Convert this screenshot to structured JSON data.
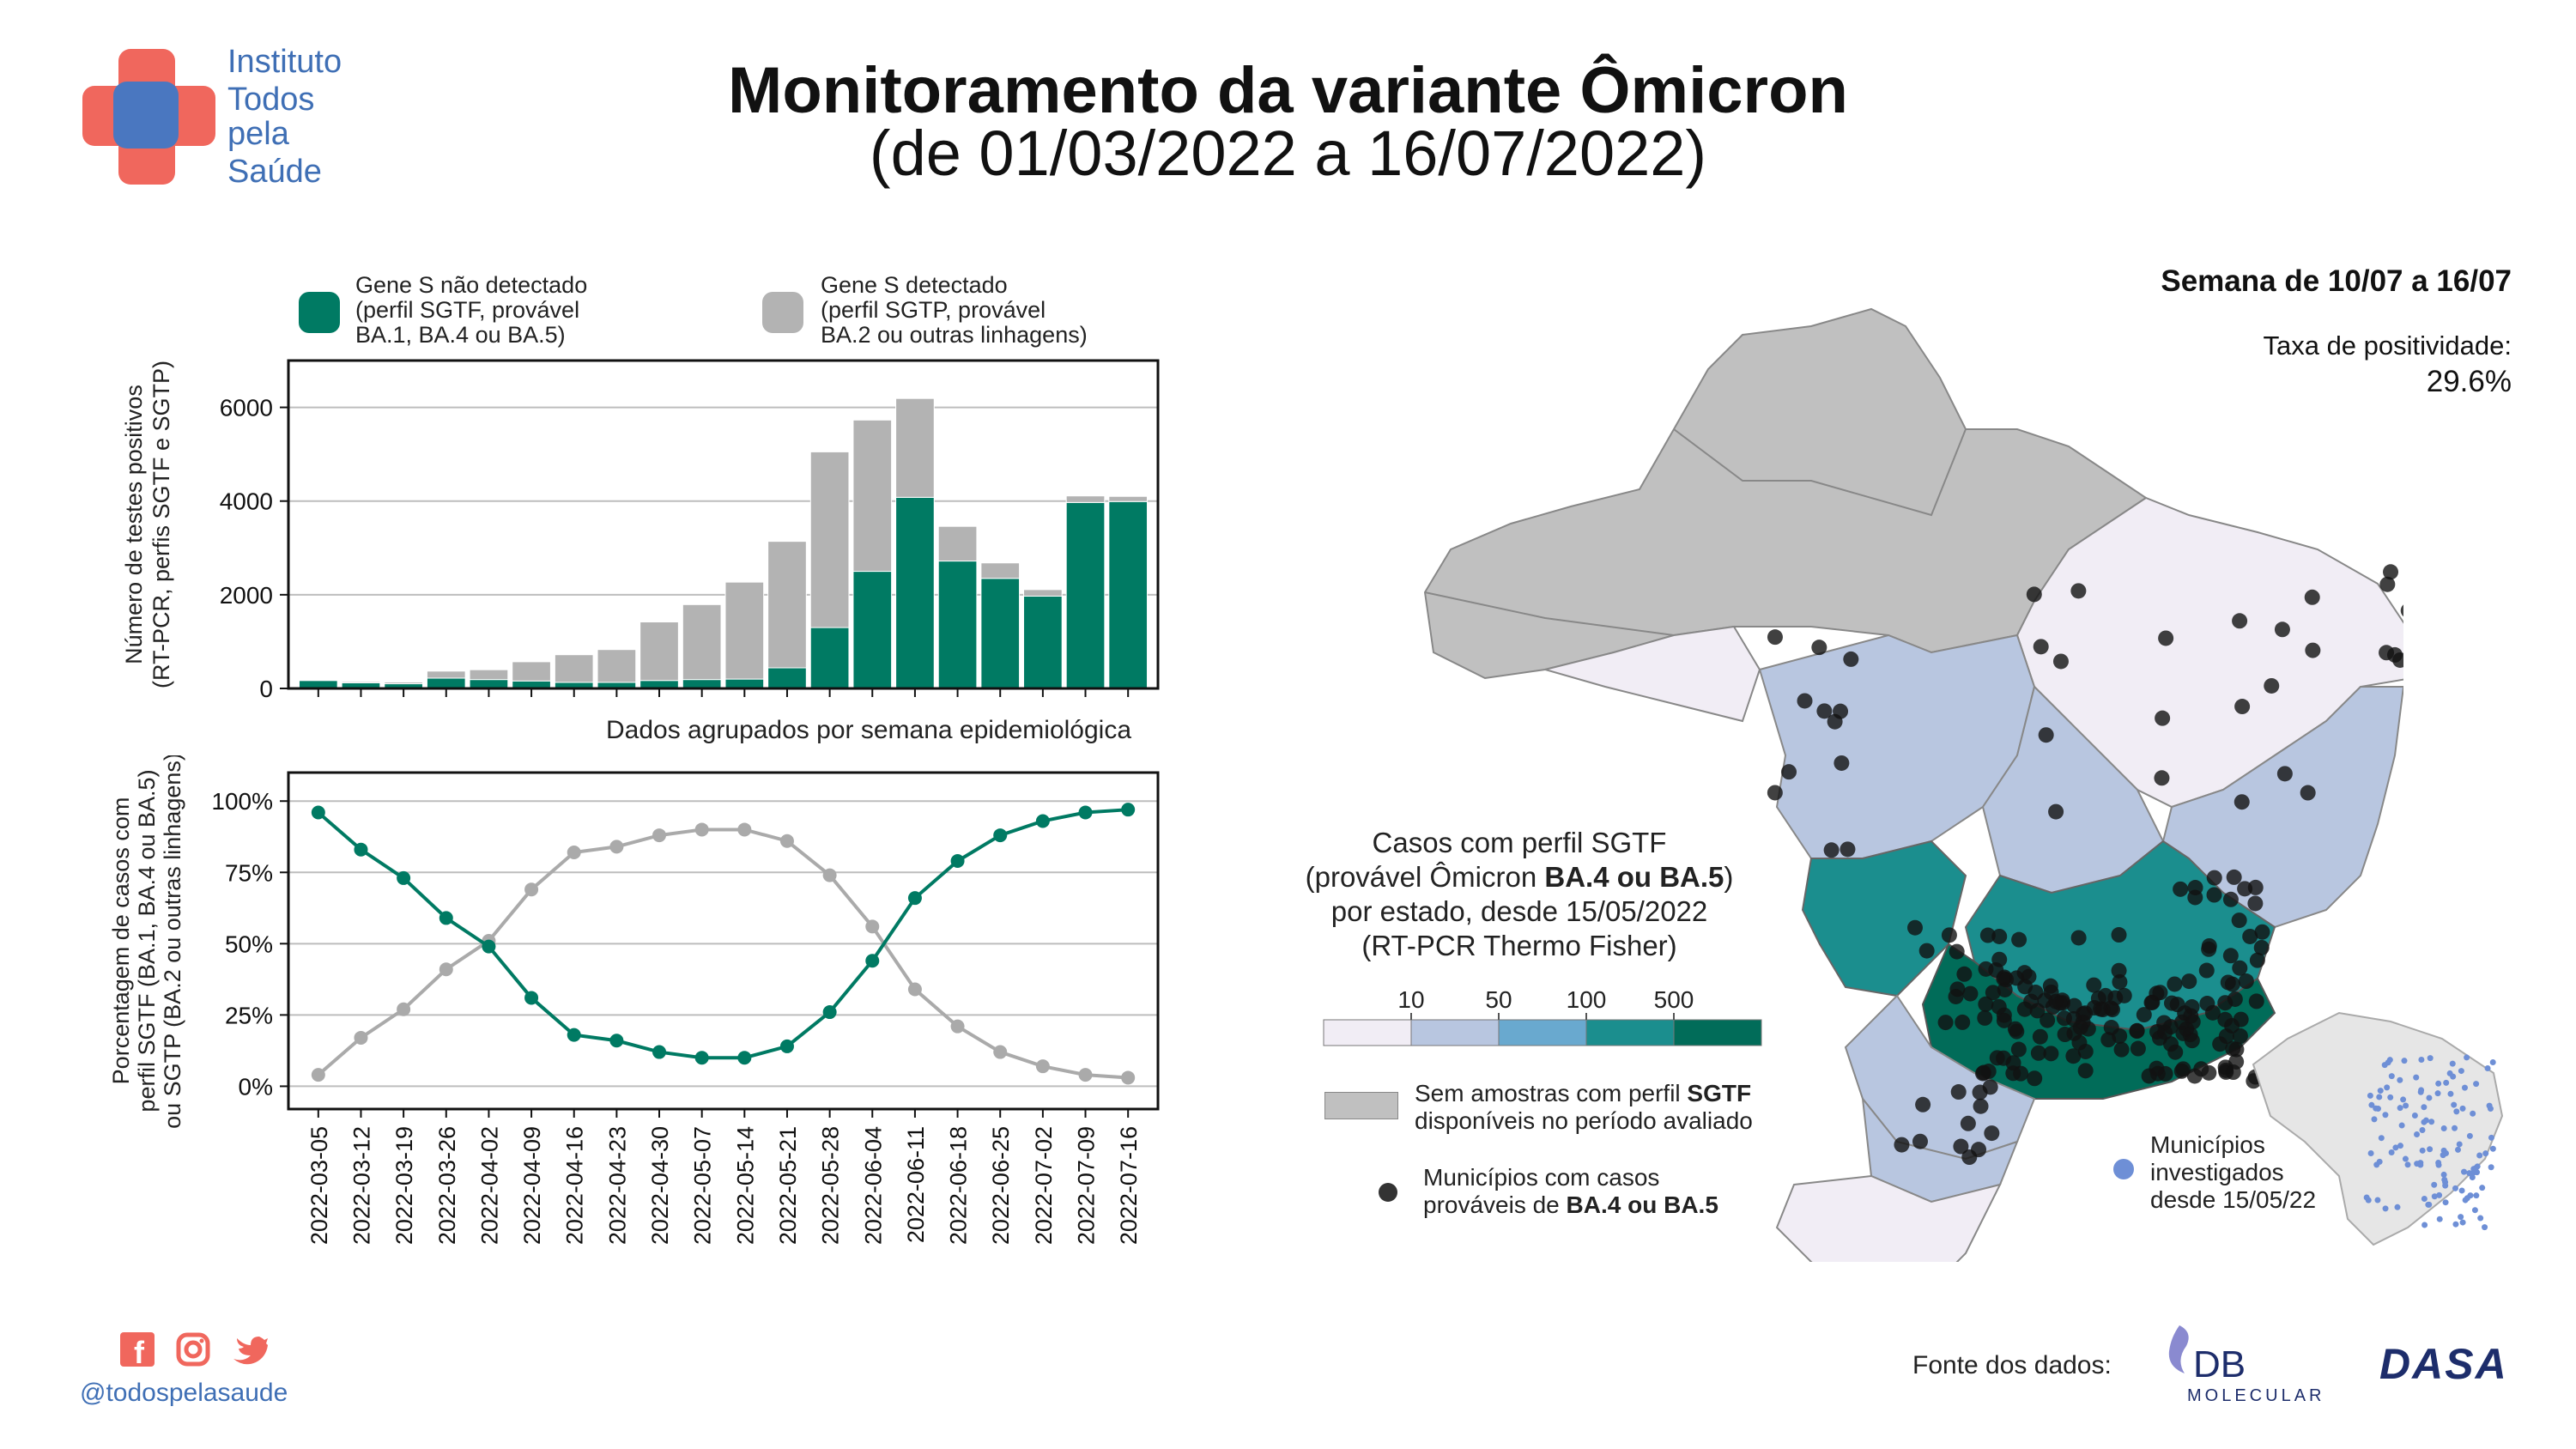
{
  "header": {
    "title": "Monitoramento da variante Ômicron",
    "subtitle": "(de 01/03/2022 a 16/07/2022)"
  },
  "logo": {
    "lines": [
      "Instituto",
      "Todos",
      "pela",
      "Saúde"
    ],
    "colors": {
      "red": "#f0675d",
      "blue": "#4a77c0"
    }
  },
  "legend_top": {
    "sgtf": {
      "lines": [
        "Gene S não detectado",
        "(perfil SGTF, provável",
        "BA.1, BA.4 ou BA.5)"
      ],
      "color": "#007a63"
    },
    "sgtp": {
      "lines": [
        "Gene S detectado",
        "(perfil SGTP, provável",
        "BA.2 ou outras linhagens)"
      ],
      "color": "#b3b3b3"
    }
  },
  "chart_data": [
    {
      "type": "bar",
      "stacked": true,
      "ylabel": [
        "Número de testes positivos",
        "(RT-PCR, perfis SGTF e SGTP)"
      ],
      "xlabel": "Dados agrupados por semana epidemiológica",
      "ylim": [
        0,
        7000
      ],
      "yticks": [
        0,
        2000,
        4000,
        6000
      ],
      "ytick_labels": [
        "0",
        "2000",
        "4000",
        "6000"
      ],
      "grid": true,
      "categories": [
        "2022-03-05",
        "2022-03-12",
        "2022-03-19",
        "2022-03-26",
        "2022-04-02",
        "2022-04-09",
        "2022-04-16",
        "2022-04-23",
        "2022-04-30",
        "2022-05-07",
        "2022-05-14",
        "2022-05-21",
        "2022-05-28",
        "2022-06-04",
        "2022-06-11",
        "2022-06-18",
        "2022-06-25",
        "2022-07-02",
        "2022-07-09",
        "2022-07-16"
      ],
      "series": [
        {
          "name": "Gene S não detectado",
          "color": "#007a63",
          "values": [
            170,
            120,
            100,
            220,
            190,
            160,
            130,
            130,
            170,
            190,
            200,
            440,
            1300,
            2500,
            4080,
            2720,
            2350,
            1970,
            3970,
            3990
          ]
        },
        {
          "name": "Gene S detectado",
          "color": "#b3b3b3",
          "values": [
            10,
            25,
            35,
            150,
            210,
            410,
            590,
            700,
            1250,
            1600,
            2070,
            2700,
            3750,
            3230,
            2110,
            740,
            330,
            140,
            140,
            110
          ]
        }
      ]
    },
    {
      "type": "line",
      "ylabel": [
        "Porcentagem de casos com",
        "perfil SGTF (BA.1, BA.4 ou BA.5)",
        "ou SGTP (BA.2 ou outras linhagens)"
      ],
      "ylim": [
        -0.08,
        1.1
      ],
      "yticks": [
        0,
        0.25,
        0.5,
        0.75,
        1.0
      ],
      "ytick_labels": [
        "0%",
        "25%",
        "50%",
        "75%",
        "100%"
      ],
      "grid": true,
      "categories": [
        "2022-03-05",
        "2022-03-12",
        "2022-03-19",
        "2022-03-26",
        "2022-04-02",
        "2022-04-09",
        "2022-04-16",
        "2022-04-23",
        "2022-04-30",
        "2022-05-07",
        "2022-05-14",
        "2022-05-21",
        "2022-05-28",
        "2022-06-04",
        "2022-06-11",
        "2022-06-18",
        "2022-06-25",
        "2022-07-02",
        "2022-07-09",
        "2022-07-16"
      ],
      "series": [
        {
          "name": "Gene S não detectado",
          "color": "#007a63",
          "values": [
            0.96,
            0.83,
            0.73,
            0.59,
            0.49,
            0.31,
            0.18,
            0.16,
            0.12,
            0.1,
            0.1,
            0.14,
            0.26,
            0.44,
            0.66,
            0.79,
            0.88,
            0.93,
            0.96,
            0.97
          ]
        },
        {
          "name": "Gene S detectado",
          "color": "#aaaaaa",
          "values": [
            0.04,
            0.17,
            0.27,
            0.41,
            0.51,
            0.69,
            0.82,
            0.84,
            0.88,
            0.9,
            0.9,
            0.86,
            0.74,
            0.56,
            0.34,
            0.21,
            0.12,
            0.07,
            0.04,
            0.03
          ]
        }
      ]
    }
  ],
  "map_panel": {
    "week": "Semana de 10/07 a 16/07",
    "positivity_label": "Taxa de positividade:",
    "positivity_value": "29.6%",
    "map_title": {
      "line1": "Casos com perfil SGTF",
      "line2_pre": "(provável Ômicron ",
      "line2_bold": "BA.4 ou BA.5",
      "line2_post": ")",
      "line3": "por estado, desde 15/05/2022",
      "line4": "(RT-PCR Thermo Fisher)"
    },
    "scale": {
      "labels": [
        "10",
        "50",
        "100",
        "500"
      ],
      "colors": [
        "#f1edf5",
        "#b8c6e0",
        "#69a9cf",
        "#1b8e8e",
        "#016c59"
      ]
    },
    "no_samples": {
      "line1_pre": "Sem amostras com perfil ",
      "line1_bold": "SGTF",
      "line2": "disponíveis no período avaliado",
      "color": "#c0c0c0"
    },
    "municipalities": {
      "line1": "Municípios com casos",
      "line2_pre": "prováveis de ",
      "line2_bold": "BA.4 ou BA.5"
    },
    "inset_legend": {
      "lines": [
        "Municípios",
        "investigados",
        "desde 15/05/22"
      ],
      "color": "#6e8fd6"
    }
  },
  "footer": {
    "handle": "@todospelasaude",
    "source_label": "Fonte dos dados:",
    "logo1_main": "DB",
    "logo1_sub": "MOLECULAR",
    "logo2": "DASA"
  }
}
